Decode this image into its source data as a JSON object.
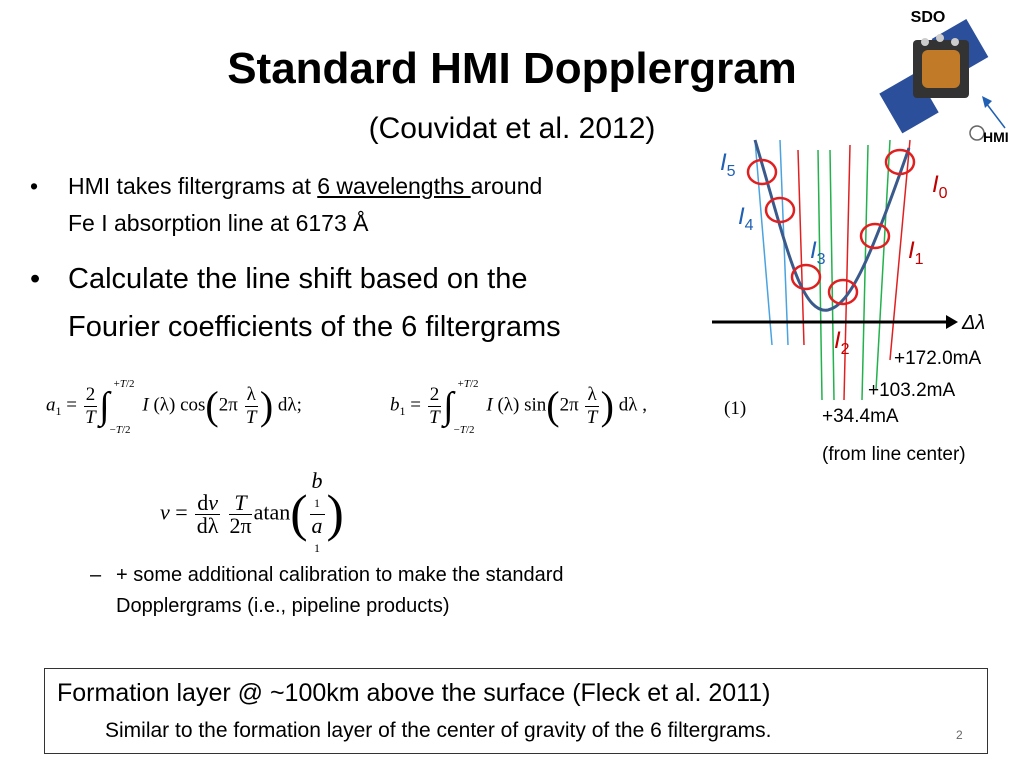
{
  "slide": {
    "title": "Standard HMI Dopplergram",
    "subtitle": "(Couvidat et al. 2012)",
    "page_number": "2"
  },
  "bullets": {
    "b1_pre": "HMI takes filtergrams at ",
    "b1_underlined": "6 wavelengths ",
    "b1_post": "around",
    "b1_line2": "Fe I absorption line at 6173 Å",
    "b2_line1": "Calculate the line shift based on the",
    "b2_line2": "Fourier coefficients of the 6 filtergrams",
    "sub1_line1": "+ some additional calibration to make the standard",
    "sub1_line2": "Dopplergrams (i.e., pipeline products)",
    "bullet_glyph": "•",
    "dash_glyph": "–"
  },
  "equation": {
    "number": "(1)"
  },
  "diagram": {
    "sdo_label": "SDO",
    "hmi_label": "HMI",
    "axis_label": "Δλ",
    "offset_labels": [
      "+172.0mA",
      "+103.2mA",
      "+34.4mA"
    ],
    "offset_note": "(from line center)",
    "filter_labels": [
      {
        "name": "I",
        "sub": "5",
        "color": "#1f5fb4"
      },
      {
        "name": "I",
        "sub": "4",
        "color": "#1f5fb4"
      },
      {
        "name": "I",
        "sub": "3",
        "color": "#1f5fb4"
      },
      {
        "name": "I",
        "sub": "0",
        "color": "#c00000"
      },
      {
        "name": "I",
        "sub": "1",
        "color": "#c00000"
      },
      {
        "name": "I",
        "sub": "2",
        "color": "#c00000"
      }
    ],
    "line_colors": {
      "blue": "#4aa3df",
      "green": "#22b14c",
      "red": "#e02020",
      "curve": "#3a5a8c",
      "circle": "#e02020"
    }
  },
  "box": {
    "main": "Formation layer @ ~100km above the surface (Fleck et al. 2011)",
    "sub": "Similar to the formation layer of the center of gravity of the 6 filtergrams."
  }
}
